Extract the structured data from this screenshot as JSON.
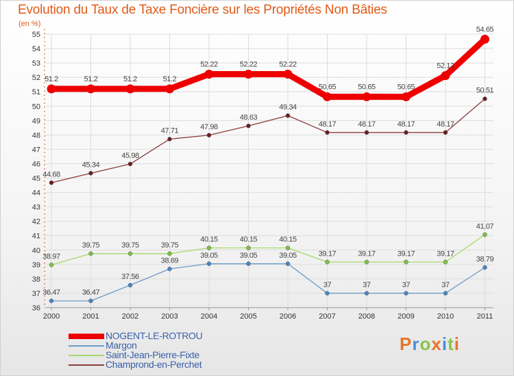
{
  "title": "Evolution du Taux de Taxe Foncière sur les Propriétés Non Bâties",
  "unit_label": "(en %)",
  "logo": {
    "text": "Proxiti",
    "colors": [
      "#e8742a",
      "#4a90d9",
      "#8bc34a",
      "#e8742a",
      "#4a90d9",
      "#8bc34a",
      "#e8742a"
    ]
  },
  "chart_data": {
    "type": "line",
    "title": "Evolution du Taux de Taxe Foncière sur les Propriétés Non Bâties",
    "xlabel": "",
    "ylabel": "(en %)",
    "x": [
      "2000",
      "2001",
      "2002",
      "2003",
      "2004",
      "2005",
      "2006",
      "2007",
      "2008",
      "2009",
      "2010",
      "2011"
    ],
    "ylim": [
      36,
      55
    ],
    "yticks": [
      "36",
      "37",
      "38",
      "39",
      "40",
      "41",
      "42",
      "43",
      "44",
      "45",
      "46",
      "47",
      "48",
      "49",
      "50",
      "51",
      "52",
      "53",
      "54",
      "55"
    ],
    "grid": true,
    "legend_position": "bottom-left",
    "series": [
      {
        "name": "NOGENT-LE-ROTROU",
        "color": "#ee0000",
        "marker": "#ee0000",
        "values": [
          51.2,
          51.2,
          51.2,
          51.2,
          52.22,
          52.22,
          52.22,
          50.65,
          50.65,
          50.65,
          52.12,
          54.65
        ],
        "labels": [
          "51.2",
          "51.2",
          "51.2",
          "51.2",
          "52.22",
          "52.22",
          "52.22",
          "50.65",
          "50.65",
          "50.65",
          "52.12",
          "54.65"
        ]
      },
      {
        "name": "Margon",
        "color": "#6a9ac8",
        "marker": "#4a86c5",
        "values": [
          36.47,
          36.47,
          37.56,
          38.69,
          39.05,
          39.05,
          39.05,
          37,
          37,
          37,
          37,
          38.79
        ],
        "labels": [
          "36.47",
          "36.47",
          "37.56",
          "38.69",
          "39.05",
          "39.05",
          "39.05",
          "37",
          "37",
          "37",
          "37",
          "38.79"
        ]
      },
      {
        "name": "Saint-Jean-Pierre-Fixte",
        "color": "#a6d96a",
        "marker": "#7cc242",
        "values": [
          38.97,
          39.75,
          39.75,
          39.75,
          40.15,
          40.15,
          40.15,
          39.17,
          39.17,
          39.17,
          39.17,
          41.07
        ],
        "labels": [
          "38.97",
          "39.75",
          "39.75",
          "39.75",
          "40.15",
          "40.15",
          "40.15",
          "39.17",
          "39.17",
          "39.17",
          "39.17",
          "41.07"
        ]
      },
      {
        "name": "Champrond-en-Perchet",
        "color": "#8b3a3a",
        "marker": "#6b1f1f",
        "values": [
          44.68,
          45.34,
          45.98,
          47.71,
          47.98,
          48.63,
          49.34,
          48.17,
          48.17,
          48.17,
          48.17,
          50.51
        ],
        "labels": [
          "44.68",
          "45.34",
          "45.98",
          "47.71",
          "47.98",
          "48.63",
          "49.34",
          "48.17",
          "48.17",
          "48.17",
          "48.17",
          "50.51"
        ]
      }
    ]
  }
}
